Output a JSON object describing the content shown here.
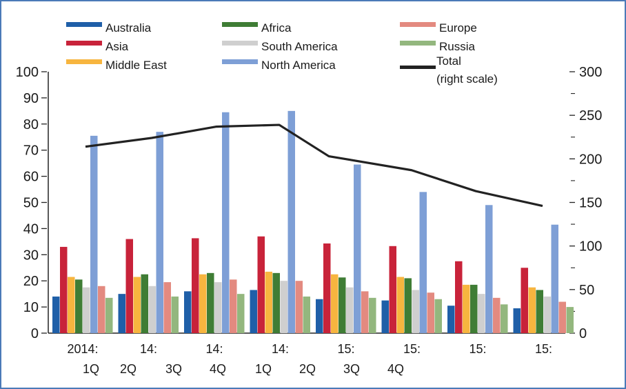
{
  "chart_data": {
    "type": "bar",
    "title": "",
    "xlabel": "",
    "ylabel": "",
    "categories": [
      "2014:",
      "14:",
      "14:",
      "14:",
      "15:",
      "15:",
      "15:",
      "15:"
    ],
    "x_sublabels": [
      "1Q",
      "2Q",
      "3Q",
      "4Q",
      "1Q",
      "2Q",
      "3Q",
      "4Q"
    ],
    "ylim_left": [
      0,
      100
    ],
    "ylim_right": [
      0,
      300
    ],
    "left_ticks": [
      0,
      10,
      20,
      30,
      40,
      50,
      60,
      70,
      80,
      90,
      100
    ],
    "right_ticks": [
      0,
      50,
      100,
      150,
      200,
      250,
      300
    ],
    "grid": false,
    "legend_position": "top",
    "series": [
      {
        "name": "Australia",
        "color": "#1f5fa8",
        "values": [
          14,
          15,
          16,
          16.5,
          13,
          12.5,
          10.5,
          9.5
        ]
      },
      {
        "name": "Asia",
        "color": "#c8233a",
        "values": [
          33,
          36,
          36.3,
          37,
          34.3,
          33.3,
          27.5,
          25
        ]
      },
      {
        "name": "Middle East",
        "color": "#f7b53f",
        "values": [
          21.5,
          21.5,
          22.5,
          23.5,
          22.5,
          21.5,
          18.5,
          17.5
        ]
      },
      {
        "name": "Africa",
        "color": "#3f7d35",
        "values": [
          20.5,
          22.5,
          23,
          23,
          21.3,
          21,
          18.5,
          16.5
        ]
      },
      {
        "name": "South America",
        "color": "#cfcfcf",
        "values": [
          17.5,
          18,
          19.5,
          20,
          17.5,
          16.5,
          15,
          14
        ]
      },
      {
        "name": "North America",
        "color": "#7e9fd6",
        "values": [
          75.5,
          77,
          84.5,
          85,
          64.5,
          54,
          49,
          41.5
        ]
      },
      {
        "name": "Europe",
        "color": "#e38a80",
        "values": [
          18,
          19.5,
          20.5,
          20,
          16,
          15.5,
          13.5,
          12
        ]
      },
      {
        "name": "Russia",
        "color": "#93b77e",
        "values": [
          13.5,
          14,
          15,
          14,
          13.5,
          13,
          11,
          10
        ]
      }
    ],
    "line_series": {
      "name": "Total",
      "name_note": "(right scale)",
      "color": "#222222",
      "axis": "right",
      "values": [
        214,
        224,
        237,
        239,
        203,
        187,
        163,
        146
      ]
    }
  }
}
